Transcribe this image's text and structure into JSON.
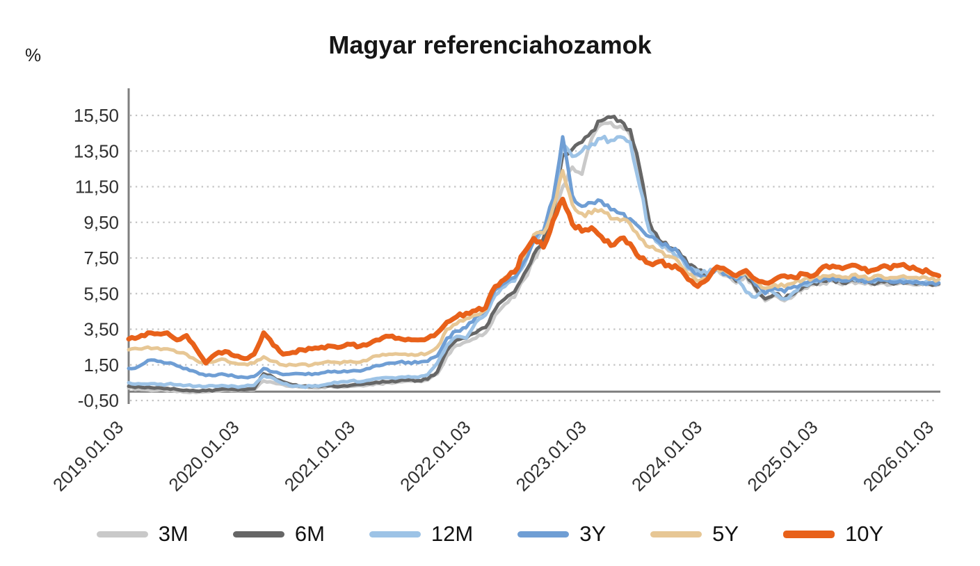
{
  "chart": {
    "title": "Magyar referenciahozamok",
    "unit": "%"
  },
  "chart_data": {
    "type": "line",
    "title": "Magyar referenciahozamok",
    "ylabel": "%",
    "ylim": [
      -0.5,
      15.5
    ],
    "grid": "horizontal-dotted",
    "legend_position": "bottom",
    "x_start_year": 2019,
    "x_step_months": 1,
    "x_tick_labels": [
      "2019.01.03",
      "2020.01.03",
      "2021.01.03",
      "2022.01.03",
      "2023.01.03",
      "2024.01.03",
      "2025.01.03",
      "2026.01.03"
    ],
    "y_ticks": [
      {
        "label": "15,50",
        "value": 15.5
      },
      {
        "label": "13,50",
        "value": 13.5
      },
      {
        "label": "11,50",
        "value": 11.5
      },
      {
        "label": "9,50",
        "value": 9.5
      },
      {
        "label": "7,50",
        "value": 7.5
      },
      {
        "label": "5,50",
        "value": 5.5
      },
      {
        "label": "3,50",
        "value": 3.5
      },
      {
        "label": "1,50",
        "value": 1.5
      },
      {
        "label": "-0,50",
        "value": -0.5
      }
    ],
    "axis_color": "#7f7f7f",
    "gridline_color": "#c3c3c3",
    "tick_text_color": "#303030",
    "series": [
      {
        "name": "3M",
        "color": "#c9c9c9",
        "width": 5,
        "values": [
          0.2,
          0.15,
          0.1,
          0.08,
          0.05,
          0.0,
          -0.03,
          -0.05,
          0.0,
          0.05,
          0.1,
          0.08,
          0.08,
          0.1,
          0.6,
          0.5,
          0.4,
          0.28,
          0.25,
          0.22,
          0.25,
          0.3,
          0.28,
          0.3,
          0.35,
          0.4,
          0.45,
          0.5,
          0.55,
          0.6,
          0.58,
          0.65,
          1.0,
          2.0,
          2.6,
          2.8,
          3.0,
          3.3,
          4.3,
          4.9,
          5.3,
          6.3,
          7.4,
          8.3,
          9.7,
          11.5,
          12.6,
          12.2,
          14.2,
          15.0,
          15.1,
          14.9,
          14.4,
          12.0,
          9.2,
          8.3,
          7.9,
          7.6,
          6.9,
          6.5,
          6.4,
          6.9,
          6.5,
          6.1,
          6.5,
          5.7,
          5.1,
          5.4,
          5.1,
          5.4,
          5.8,
          6.0,
          6.1,
          6.2,
          6.0,
          6.2,
          6.1,
          6.0,
          6.1,
          6.0,
          6.1,
          6.05,
          6.0,
          6.0,
          6.0
        ]
      },
      {
        "name": "6M",
        "color": "#666666",
        "width": 5,
        "values": [
          0.3,
          0.28,
          0.25,
          0.22,
          0.18,
          0.12,
          0.08,
          0.03,
          0.05,
          0.1,
          0.15,
          0.12,
          0.1,
          0.15,
          1.0,
          0.8,
          0.55,
          0.38,
          0.3,
          0.28,
          0.3,
          0.35,
          0.3,
          0.35,
          0.4,
          0.45,
          0.5,
          0.55,
          0.6,
          0.65,
          0.62,
          0.7,
          1.1,
          2.3,
          2.9,
          3.0,
          3.3,
          3.6,
          4.6,
          5.2,
          5.6,
          6.6,
          7.7,
          8.6,
          10.0,
          13.3,
          13.6,
          14.0,
          14.6,
          15.2,
          15.4,
          15.2,
          14.7,
          12.5,
          9.5,
          8.5,
          8.1,
          7.9,
          7.1,
          6.8,
          6.5,
          7.0,
          6.6,
          6.2,
          6.6,
          5.8,
          5.2,
          5.5,
          5.2,
          5.5,
          5.9,
          6.1,
          6.2,
          6.3,
          6.1,
          6.3,
          6.2,
          6.1,
          6.2,
          6.1,
          6.2,
          6.15,
          6.1,
          6.05,
          6.05
        ]
      },
      {
        "name": "12M",
        "color": "#9dc3e6",
        "width": 5,
        "values": [
          0.5,
          0.45,
          0.42,
          0.4,
          0.42,
          0.38,
          0.35,
          0.3,
          0.28,
          0.3,
          0.32,
          0.3,
          0.3,
          0.35,
          0.9,
          0.75,
          0.45,
          0.3,
          0.28,
          0.3,
          0.35,
          0.45,
          0.55,
          0.6,
          0.55,
          0.65,
          0.75,
          0.78,
          0.8,
          0.85,
          0.8,
          0.95,
          1.6,
          2.6,
          3.1,
          3.0,
          3.9,
          4.3,
          5.4,
          5.9,
          6.2,
          7.1,
          8.4,
          9.0,
          10.5,
          13.9,
          13.2,
          13.5,
          13.9,
          14.2,
          14.1,
          14.3,
          14.0,
          11.5,
          9.0,
          8.3,
          8.0,
          7.6,
          6.9,
          6.8,
          6.6,
          7.0,
          6.7,
          6.4,
          5.6,
          5.3,
          5.8,
          5.5,
          5.2,
          5.6,
          6.0,
          6.2,
          6.3,
          6.4,
          6.2,
          6.4,
          6.3,
          6.2,
          6.3,
          6.2,
          6.3,
          6.2,
          6.1,
          6.1,
          6.1
        ]
      },
      {
        "name": "3Y",
        "color": "#6f9ed4",
        "width": 5,
        "values": [
          1.3,
          1.4,
          1.75,
          1.7,
          1.6,
          1.45,
          1.3,
          1.1,
          0.9,
          0.9,
          0.95,
          0.85,
          0.8,
          0.85,
          1.3,
          1.1,
          0.95,
          1.0,
          1.0,
          0.95,
          1.05,
          1.1,
          1.1,
          1.15,
          1.15,
          1.3,
          1.45,
          1.6,
          1.65,
          1.65,
          1.62,
          1.7,
          2.0,
          3.0,
          3.4,
          3.6,
          4.2,
          4.6,
          5.7,
          6.1,
          6.4,
          7.3,
          8.5,
          9.0,
          10.8,
          14.3,
          11.0,
          10.4,
          10.6,
          10.7,
          10.2,
          10.0,
          9.7,
          9.2,
          8.7,
          8.4,
          8.1,
          7.8,
          7.0,
          6.6,
          6.4,
          6.9,
          6.6,
          6.3,
          6.6,
          6.0,
          5.5,
          5.8,
          5.6,
          5.9,
          6.1,
          6.2,
          6.3,
          6.35,
          6.2,
          6.35,
          6.25,
          6.15,
          6.25,
          6.15,
          6.2,
          6.15,
          6.1,
          6.1,
          6.1
        ]
      },
      {
        "name": "5Y",
        "color": "#e7c795",
        "width": 5,
        "values": [
          2.35,
          2.4,
          2.5,
          2.45,
          2.4,
          2.2,
          2.1,
          1.75,
          1.6,
          1.7,
          1.8,
          1.6,
          1.55,
          1.6,
          1.95,
          1.7,
          1.5,
          1.5,
          1.55,
          1.5,
          1.6,
          1.65,
          1.6,
          1.7,
          1.65,
          1.85,
          2.0,
          2.1,
          2.1,
          2.05,
          2.06,
          2.15,
          2.5,
          3.5,
          3.8,
          4.1,
          4.3,
          4.6,
          5.9,
          6.4,
          6.8,
          7.6,
          8.8,
          8.9,
          10.3,
          12.4,
          10.5,
          10.0,
          10.0,
          10.2,
          9.7,
          9.6,
          9.4,
          8.6,
          8.1,
          7.9,
          7.6,
          7.3,
          6.6,
          6.2,
          6.3,
          6.9,
          6.7,
          6.4,
          6.7,
          6.2,
          5.8,
          6.0,
          5.9,
          6.1,
          6.3,
          6.4,
          6.5,
          6.55,
          6.4,
          6.55,
          6.45,
          6.35,
          6.5,
          6.4,
          6.45,
          6.4,
          6.35,
          6.3,
          6.3
        ]
      },
      {
        "name": "10Y",
        "color": "#e8611a",
        "width": 7,
        "values": [
          2.95,
          3.05,
          3.3,
          3.25,
          3.3,
          2.9,
          3.15,
          2.4,
          1.6,
          2.1,
          2.25,
          2.0,
          1.85,
          2.1,
          3.3,
          2.6,
          2.1,
          2.2,
          2.35,
          2.4,
          2.5,
          2.55,
          2.5,
          2.65,
          2.55,
          2.7,
          2.9,
          3.1,
          3.0,
          2.95,
          2.9,
          3.0,
          3.3,
          3.9,
          4.2,
          4.4,
          4.55,
          4.7,
          5.9,
          6.3,
          6.7,
          7.8,
          8.6,
          8.1,
          9.6,
          10.8,
          9.4,
          9.0,
          9.2,
          8.7,
          8.2,
          8.6,
          8.3,
          7.5,
          7.2,
          7.3,
          7.1,
          6.9,
          6.3,
          5.9,
          6.3,
          7.0,
          6.8,
          6.5,
          6.8,
          6.3,
          6.1,
          6.3,
          6.5,
          6.4,
          6.6,
          6.5,
          7.0,
          7.05,
          6.9,
          7.1,
          6.9,
          6.8,
          7.0,
          6.9,
          7.1,
          6.9,
          6.8,
          6.7,
          6.5
        ]
      }
    ]
  }
}
